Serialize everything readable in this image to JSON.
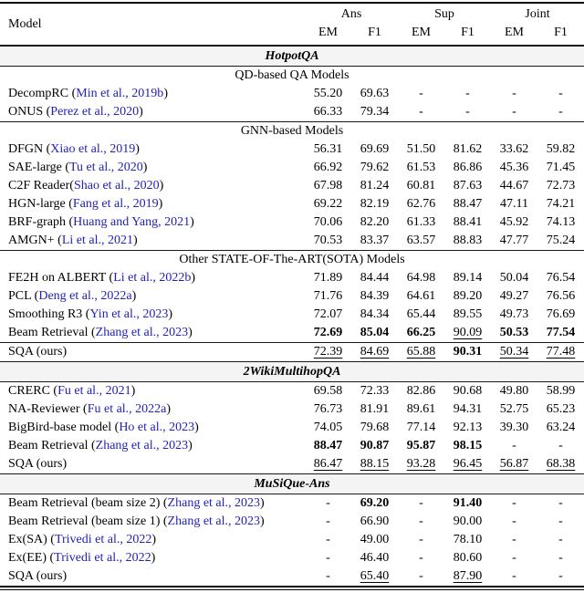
{
  "meta": {
    "citation_color": "#2222b8",
    "band_bg": "#f4f4f4"
  },
  "header": {
    "model": "Model",
    "groups": [
      {
        "label": "Ans"
      },
      {
        "label": "Sup"
      },
      {
        "label": "Joint"
      }
    ],
    "subcols": [
      "EM",
      "F1",
      "EM",
      "F1",
      "EM",
      "F1"
    ]
  },
  "sections": [
    {
      "title": "HotpotQA",
      "groups": [
        {
          "subheader": "QD-based QA Models",
          "rows": [
            {
              "prefix": "DecompRC (",
              "citation": "Min et al., 2019b",
              "suffix": ")",
              "values": [
                {
                  "v": "55.20"
                },
                {
                  "v": "69.63"
                },
                {
                  "v": "-"
                },
                {
                  "v": "-"
                },
                {
                  "v": "-"
                },
                {
                  "v": "-"
                }
              ]
            },
            {
              "prefix": "ONUS (",
              "citation": "Perez et al., 2020",
              "suffix": ")",
              "values": [
                {
                  "v": "66.33"
                },
                {
                  "v": "79.34"
                },
                {
                  "v": "-"
                },
                {
                  "v": "-"
                },
                {
                  "v": "-"
                },
                {
                  "v": "-"
                }
              ]
            }
          ]
        },
        {
          "subheader": "GNN-based Models",
          "rows": [
            {
              "prefix": "DFGN (",
              "citation": "Xiao et al., 2019",
              "suffix": ")",
              "values": [
                {
                  "v": "56.31"
                },
                {
                  "v": "69.69"
                },
                {
                  "v": "51.50"
                },
                {
                  "v": "81.62"
                },
                {
                  "v": "33.62"
                },
                {
                  "v": "59.82"
                }
              ]
            },
            {
              "prefix": "SAE-large (",
              "citation": "Tu et al., 2020",
              "suffix": ")",
              "values": [
                {
                  "v": "66.92"
                },
                {
                  "v": "79.62"
                },
                {
                  "v": "61.53"
                },
                {
                  "v": "86.86"
                },
                {
                  "v": "45.36"
                },
                {
                  "v": "71.45"
                }
              ]
            },
            {
              "prefix": "C2F Reader(",
              "citation": "Shao et al., 2020",
              "suffix": ")",
              "values": [
                {
                  "v": "67.98"
                },
                {
                  "v": "81.24"
                },
                {
                  "v": "60.81"
                },
                {
                  "v": "87.63"
                },
                {
                  "v": "44.67"
                },
                {
                  "v": "72.73"
                }
              ]
            },
            {
              "prefix": "HGN-large (",
              "citation": "Fang et al., 2019",
              "suffix": ")",
              "values": [
                {
                  "v": "69.22"
                },
                {
                  "v": "82.19"
                },
                {
                  "v": "62.76"
                },
                {
                  "v": "88.47"
                },
                {
                  "v": "47.11"
                },
                {
                  "v": "74.21"
                }
              ]
            },
            {
              "prefix": "BRF-graph (",
              "citation": "Huang and Yang, 2021",
              "suffix": ")",
              "values": [
                {
                  "v": "70.06"
                },
                {
                  "v": "82.20"
                },
                {
                  "v": "61.33"
                },
                {
                  "v": "88.41"
                },
                {
                  "v": "45.92"
                },
                {
                  "v": "74.13"
                }
              ]
            },
            {
              "prefix": "AMGN+ (",
              "citation": "Li et al., 2021",
              "suffix": ")",
              "values": [
                {
                  "v": "70.53"
                },
                {
                  "v": "83.37"
                },
                {
                  "v": "63.57"
                },
                {
                  "v": "88.83"
                },
                {
                  "v": "47.77"
                },
                {
                  "v": "75.24"
                }
              ]
            }
          ]
        },
        {
          "subheader": "Other STATE-OF-The-ART(SOTA) Models",
          "rows": [
            {
              "prefix": "FE2H on ALBERT (",
              "citation": "Li et al., 2022b",
              "suffix": ")",
              "values": [
                {
                  "v": "71.89"
                },
                {
                  "v": "84.44"
                },
                {
                  "v": "64.98"
                },
                {
                  "v": "89.14"
                },
                {
                  "v": "50.04"
                },
                {
                  "v": "76.54"
                }
              ]
            },
            {
              "prefix": "PCL (",
              "citation": "Deng et al., 2022a",
              "suffix": ")",
              "values": [
                {
                  "v": "71.76"
                },
                {
                  "v": "84.39"
                },
                {
                  "v": "64.61"
                },
                {
                  "v": "89.20"
                },
                {
                  "v": "49.27"
                },
                {
                  "v": "76.56"
                }
              ]
            },
            {
              "prefix": "Smoothing R3 (",
              "citation": "Yin et al., 2023",
              "suffix": ")",
              "values": [
                {
                  "v": "72.07"
                },
                {
                  "v": "84.34"
                },
                {
                  "v": "65.44"
                },
                {
                  "v": "89.55"
                },
                {
                  "v": "49.73"
                },
                {
                  "v": "76.69"
                }
              ]
            },
            {
              "prefix": "Beam Retrieval (",
              "citation": "Zhang et al., 2023",
              "suffix": ")",
              "values": [
                {
                  "v": "72.69",
                  "s": "b"
                },
                {
                  "v": "85.04",
                  "s": "b"
                },
                {
                  "v": "66.25",
                  "s": "b"
                },
                {
                  "v": "90.09",
                  "s": "u"
                },
                {
                  "v": "50.53",
                  "s": "b"
                },
                {
                  "v": "77.54",
                  "s": "b"
                }
              ]
            }
          ]
        },
        {
          "subheader": null,
          "rows": [
            {
              "prefix": "SQA (ours)",
              "citation": null,
              "suffix": null,
              "values": [
                {
                  "v": "72.39",
                  "s": "u"
                },
                {
                  "v": "84.69",
                  "s": "u"
                },
                {
                  "v": "65.88",
                  "s": "u"
                },
                {
                  "v": "90.31",
                  "s": "b"
                },
                {
                  "v": "50.34",
                  "s": "u"
                },
                {
                  "v": "77.48",
                  "s": "u"
                }
              ]
            }
          ]
        }
      ]
    },
    {
      "title": "2WikiMultihopQA",
      "groups": [
        {
          "subheader": null,
          "rows": [
            {
              "prefix": "CRERC (",
              "citation": "Fu et al., 2021",
              "suffix": ")",
              "values": [
                {
                  "v": "69.58"
                },
                {
                  "v": "72.33"
                },
                {
                  "v": "82.86"
                },
                {
                  "v": "90.68"
                },
                {
                  "v": "49.80"
                },
                {
                  "v": "58.99"
                }
              ]
            },
            {
              "prefix": "NA-Reviewer (",
              "citation": "Fu et al., 2022a",
              "suffix": ")",
              "values": [
                {
                  "v": "76.73"
                },
                {
                  "v": "81.91"
                },
                {
                  "v": "89.61"
                },
                {
                  "v": "94.31"
                },
                {
                  "v": "52.75"
                },
                {
                  "v": "65.23"
                }
              ]
            },
            {
              "prefix": "BigBird-base model (",
              "citation": "Ho et al., 2023",
              "suffix": ")",
              "values": [
                {
                  "v": "74.05"
                },
                {
                  "v": "79.68"
                },
                {
                  "v": "77.14"
                },
                {
                  "v": "92.13"
                },
                {
                  "v": "39.30"
                },
                {
                  "v": "63.24"
                }
              ]
            },
            {
              "prefix": "Beam Retrieval (",
              "citation": "Zhang et al., 2023",
              "suffix": ")",
              "values": [
                {
                  "v": "88.47",
                  "s": "b"
                },
                {
                  "v": "90.87",
                  "s": "b"
                },
                {
                  "v": "95.87",
                  "s": "b"
                },
                {
                  "v": "98.15",
                  "s": "b"
                },
                {
                  "v": "-"
                },
                {
                  "v": "-"
                }
              ]
            },
            {
              "prefix": "SQA (ours)",
              "citation": null,
              "suffix": null,
              "values": [
                {
                  "v": "86.47",
                  "s": "u"
                },
                {
                  "v": "88.15",
                  "s": "u"
                },
                {
                  "v": "93.28",
                  "s": "u"
                },
                {
                  "v": "96.45",
                  "s": "u"
                },
                {
                  "v": "56.87",
                  "s": "u"
                },
                {
                  "v": "68.38",
                  "s": "u"
                }
              ]
            }
          ]
        }
      ]
    },
    {
      "title": "MuSiQue-Ans",
      "groups": [
        {
          "subheader": null,
          "rows": [
            {
              "prefix": "Beam Retrieval (beam size 2) (",
              "citation": "Zhang et al., 2023",
              "suffix": ")",
              "values": [
                {
                  "v": "-"
                },
                {
                  "v": "69.20",
                  "s": "b"
                },
                {
                  "v": "-"
                },
                {
                  "v": "91.40",
                  "s": "b"
                },
                {
                  "v": "-"
                },
                {
                  "v": "-"
                }
              ]
            },
            {
              "prefix": "Beam Retrieval (beam size 1) (",
              "citation": "Zhang et al., 2023",
              "suffix": ")",
              "values": [
                {
                  "v": "-"
                },
                {
                  "v": "66.90"
                },
                {
                  "v": "-"
                },
                {
                  "v": "90.00"
                },
                {
                  "v": "-"
                },
                {
                  "v": "-"
                }
              ]
            },
            {
              "prefix": "Ex(SA) (",
              "citation": "Trivedi et al., 2022",
              "suffix": ")",
              "values": [
                {
                  "v": "-"
                },
                {
                  "v": "49.00"
                },
                {
                  "v": "-"
                },
                {
                  "v": "78.10"
                },
                {
                  "v": "-"
                },
                {
                  "v": "-"
                }
              ]
            },
            {
              "prefix": "Ex(EE) (",
              "citation": "Trivedi et al., 2022",
              "suffix": ")",
              "values": [
                {
                  "v": "-"
                },
                {
                  "v": "46.40"
                },
                {
                  "v": "-"
                },
                {
                  "v": "80.60"
                },
                {
                  "v": "-"
                },
                {
                  "v": "-"
                }
              ]
            },
            {
              "prefix": "SQA (ours)",
              "citation": null,
              "suffix": null,
              "values": [
                {
                  "v": "-"
                },
                {
                  "v": "65.40",
                  "s": "u"
                },
                {
                  "v": "-"
                },
                {
                  "v": "87.90",
                  "s": "u"
                },
                {
                  "v": "-"
                },
                {
                  "v": "-"
                }
              ]
            }
          ]
        }
      ]
    }
  ]
}
